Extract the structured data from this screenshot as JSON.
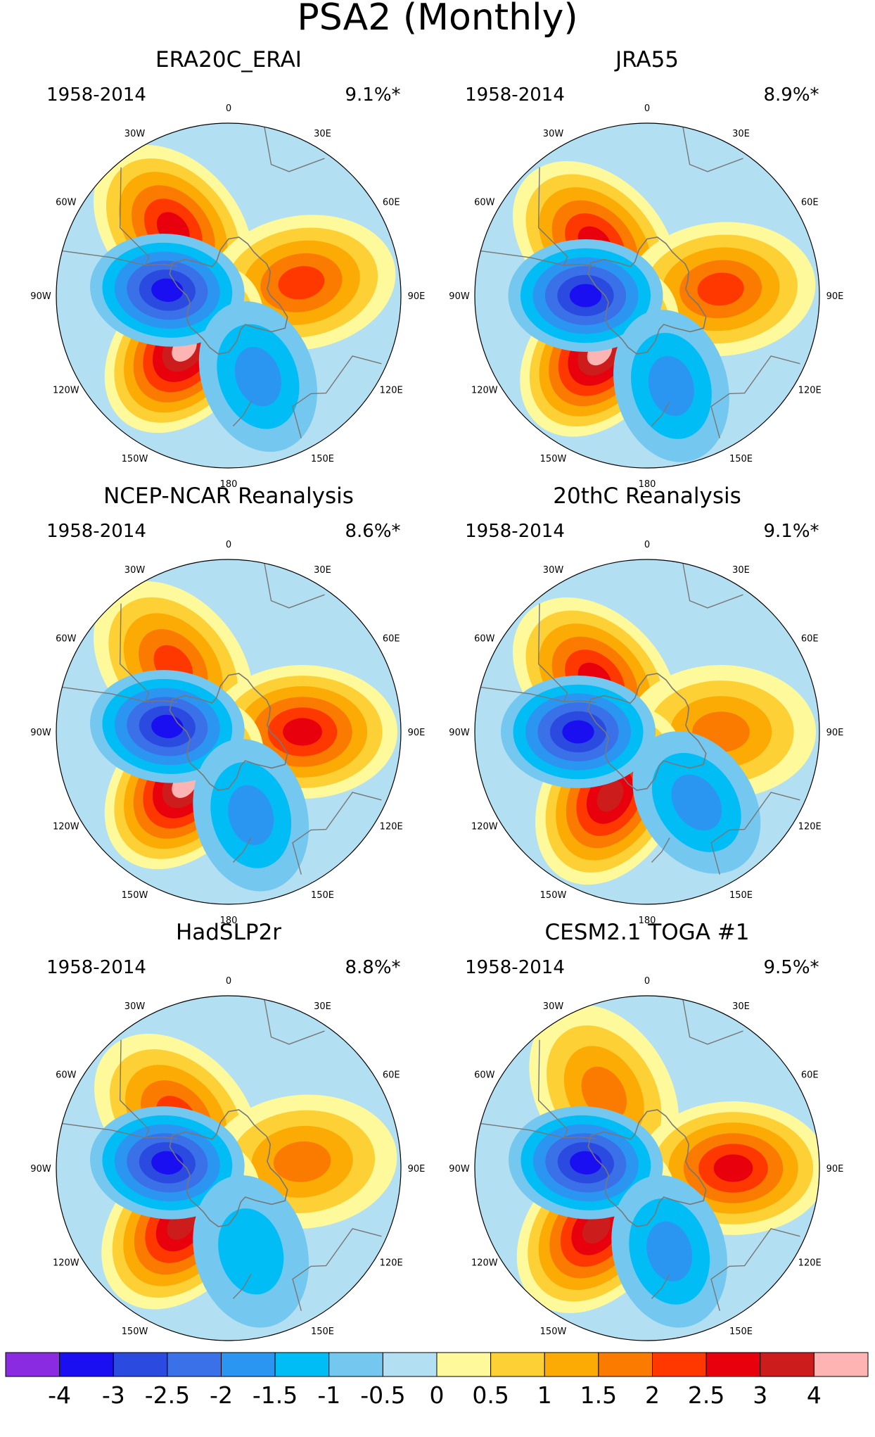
{
  "chart_data": {
    "type": "polar-contour-map",
    "title": "PSA2 (Monthly)",
    "projection": "south-polar-stereographic",
    "longitude_labels": [
      "0",
      "30E",
      "60E",
      "90E",
      "120E",
      "150E",
      "180",
      "150W",
      "120W",
      "90W",
      "60W",
      "30W"
    ],
    "panels": [
      {
        "name": "ERA20C_ERAI",
        "period": "1958-2014",
        "variance_explained": "9.1%*",
        "features": [
          {
            "kind": "positive",
            "peak": 2.5,
            "lon": -40,
            "lat": -55
          },
          {
            "kind": "positive",
            "peak": 2.0,
            "lon": 80,
            "lat": -60
          },
          {
            "kind": "positive",
            "peak": 4.0,
            "lon": -140,
            "lat": -62
          },
          {
            "kind": "negative",
            "peak": -3.0,
            "lon": -85,
            "lat": -65
          },
          {
            "kind": "negative",
            "peak": -1.5,
            "lon": 160,
            "lat": -55
          }
        ]
      },
      {
        "name": "JRA55",
        "period": "1958-2014",
        "variance_explained": "8.9%*",
        "features": [
          {
            "kind": "positive",
            "peak": 2.5,
            "lon": -45,
            "lat": -60
          },
          {
            "kind": "positive",
            "peak": 2.0,
            "lon": 85,
            "lat": -60
          },
          {
            "kind": "positive",
            "peak": 4.0,
            "lon": -140,
            "lat": -60
          },
          {
            "kind": "negative",
            "peak": -3.0,
            "lon": -90,
            "lat": -65
          },
          {
            "kind": "negative",
            "peak": -1.5,
            "lon": 165,
            "lat": -52
          }
        ]
      },
      {
        "name": "NCEP-NCAR Reanalysis",
        "period": "1958-2014",
        "variance_explained": "8.6%*",
        "features": [
          {
            "kind": "positive",
            "peak": 2.0,
            "lon": -40,
            "lat": -55
          },
          {
            "kind": "positive",
            "peak": 2.5,
            "lon": 90,
            "lat": -60
          },
          {
            "kind": "positive",
            "peak": 4.0,
            "lon": -140,
            "lat": -62
          },
          {
            "kind": "negative",
            "peak": -3.0,
            "lon": -85,
            "lat": -65
          },
          {
            "kind": "negative",
            "peak": -1.5,
            "lon": 165,
            "lat": -55
          }
        ]
      },
      {
        "name": "20thC Reanalysis",
        "period": "1958-2014",
        "variance_explained": "9.1%*",
        "features": [
          {
            "kind": "positive",
            "peak": 2.5,
            "lon": -45,
            "lat": -60
          },
          {
            "kind": "positive",
            "peak": 1.5,
            "lon": 90,
            "lat": -60
          },
          {
            "kind": "positive",
            "peak": 3.0,
            "lon": -150,
            "lat": -60
          },
          {
            "kind": "negative",
            "peak": -3.5,
            "lon": -90,
            "lat": -62
          },
          {
            "kind": "negative",
            "peak": -1.5,
            "lon": 145,
            "lat": -55
          }
        ]
      },
      {
        "name": "HadSLP2r",
        "period": "1958-2014",
        "variance_explained": "8.8%*",
        "features": [
          {
            "kind": "positive",
            "peak": 2.0,
            "lon": -45,
            "lat": -60
          },
          {
            "kind": "positive",
            "peak": 1.5,
            "lon": 85,
            "lat": -60
          },
          {
            "kind": "positive",
            "peak": 3.0,
            "lon": -140,
            "lat": -60
          },
          {
            "kind": "negative",
            "peak": -3.0,
            "lon": -85,
            "lat": -65
          },
          {
            "kind": "negative",
            "peak": -1.0,
            "lon": 165,
            "lat": -55
          }
        ]
      },
      {
        "name": "CESM2.1 TOGA #1",
        "period": "1958-2014",
        "variance_explained": "9.5%*",
        "features": [
          {
            "kind": "positive",
            "peak": 1.5,
            "lon": -30,
            "lat": -55
          },
          {
            "kind": "positive",
            "peak": 2.5,
            "lon": 90,
            "lat": -55
          },
          {
            "kind": "positive",
            "peak": 3.0,
            "lon": -140,
            "lat": -58
          },
          {
            "kind": "negative",
            "peak": -3.5,
            "lon": -85,
            "lat": -65
          },
          {
            "kind": "negative",
            "peak": -1.5,
            "lon": 165,
            "lat": -55
          }
        ]
      }
    ],
    "colorbar": {
      "labels": [
        "-4",
        "-3",
        "-2.5",
        "-2",
        "-1.5",
        "-1",
        "-0.5",
        "0",
        "0.5",
        "1",
        "1.5",
        "2",
        "2.5",
        "3",
        "4"
      ],
      "colors": [
        "#8a2be2",
        "#1a0ff0",
        "#2b4be0",
        "#3a70e8",
        "#2b96f2",
        "#00bdf5",
        "#74c8ef",
        "#b3dff2",
        "#fef99b",
        "#fdd035",
        "#fcab04",
        "#fb7a00",
        "#ff3800",
        "#e8000c",
        "#cc1c1c",
        "#ffb4b4"
      ]
    }
  }
}
